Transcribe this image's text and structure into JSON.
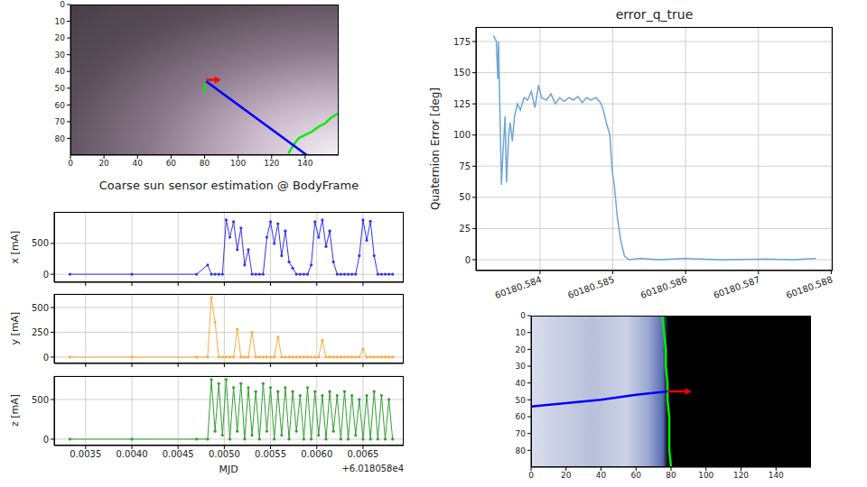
{
  "chart_data": [
    {
      "type": "image",
      "xlim": [
        0,
        160
      ],
      "ylim": [
        90,
        0
      ],
      "xticks": [
        0,
        20,
        40,
        60,
        80,
        100,
        120,
        140
      ],
      "yticks": [
        0,
        10,
        20,
        30,
        40,
        50,
        60,
        70,
        80
      ],
      "grid": false,
      "series": [
        {
          "color": "#00ee00",
          "x": [
            80,
            80,
            80
          ],
          "y": [
            47,
            50,
            52
          ]
        },
        {
          "color": "#00ee00",
          "x": [
            130,
            133,
            136,
            140,
            144,
            148,
            152,
            155,
            158,
            160
          ],
          "y": [
            89,
            84,
            80,
            78,
            76,
            73,
            71,
            68,
            66,
            65
          ]
        },
        {
          "color": "#0000ff",
          "x": [
            81,
            141
          ],
          "y": [
            46,
            90
          ]
        },
        {
          "color": "#ff0000",
          "marker": "arrow",
          "x": [
            81,
            86
          ],
          "y": [
            45,
            45
          ]
        }
      ]
    },
    {
      "type": "line",
      "title": "Coarse sun sensor estimation @ BodyFrame",
      "ylabel": "x [mA]",
      "color": "#3333ee",
      "marker": "circle",
      "grid": true,
      "tick_labels": "y",
      "xlim": [
        0.00316,
        0.00694
      ],
      "xticks": [
        0.0035,
        {
          "value": 0.004,
          "label": "0.0040"
        },
        0.0045,
        {
          "value": 0.005,
          "label": "0.0050"
        },
        0.0055,
        {
          "value": 0.006,
          "label": "0.0060"
        },
        0.0065
      ],
      "ylim": [
        -130,
        1010
      ],
      "yticks": [
        0,
        500
      ],
      "x": [
        0.00333,
        0.004,
        0.0047,
        0.00482,
        0.00486,
        0.0049,
        0.00494,
        0.00498,
        0.00502,
        0.00506,
        0.0051,
        0.00514,
        0.00518,
        0.00522,
        0.00526,
        0.0053,
        0.00534,
        0.00538,
        0.00542,
        0.00546,
        0.0055,
        0.00554,
        0.00558,
        0.00562,
        0.00566,
        0.0057,
        0.00574,
        0.00578,
        0.00582,
        0.00586,
        0.0059,
        0.00594,
        0.00598,
        0.00602,
        0.00606,
        0.0061,
        0.00614,
        0.00618,
        0.00622,
        0.00626,
        0.0063,
        0.00634,
        0.00638,
        0.00642,
        0.00646,
        0.0065,
        0.00654,
        0.00658,
        0.00662,
        0.00666,
        0.0067,
        0.00674,
        0.00678,
        0.00682
      ],
      "values": [
        0,
        0,
        0,
        150,
        0,
        0,
        0,
        0,
        880,
        600,
        850,
        400,
        750,
        150,
        400,
        0,
        0,
        0,
        0,
        600,
        850,
        500,
        820,
        300,
        700,
        200,
        100,
        0,
        0,
        0,
        0,
        150,
        850,
        600,
        880,
        450,
        700,
        200,
        0,
        0,
        0,
        0,
        0,
        0,
        300,
        880,
        550,
        860,
        300,
        0,
        0,
        0,
        0,
        0
      ]
    },
    {
      "type": "line",
      "ylabel": "y [mA]",
      "color": "#f5b041",
      "marker": "circle",
      "grid": true,
      "tick_labels": "y",
      "xlim": [
        0.00316,
        0.00694
      ],
      "xticks": [
        0.0035,
        {
          "value": 0.004,
          "label": "0.0040"
        },
        0.0045,
        {
          "value": 0.005,
          "label": "0.0050"
        },
        0.0055,
        {
          "value": 0.006,
          "label": "0.0060"
        },
        0.0065
      ],
      "ylim": [
        -64,
        636
      ],
      "yticks": [
        0,
        250,
        500
      ],
      "x": [
        0.00333,
        0.004,
        0.0047,
        0.00482,
        0.00486,
        0.0049,
        0.00494,
        0.00498,
        0.00502,
        0.00506,
        0.0051,
        0.00514,
        0.00518,
        0.00522,
        0.00526,
        0.0053,
        0.00534,
        0.00538,
        0.00542,
        0.00546,
        0.0055,
        0.00554,
        0.00558,
        0.00562,
        0.00566,
        0.0057,
        0.00574,
        0.00578,
        0.00582,
        0.00586,
        0.0059,
        0.00594,
        0.00598,
        0.00602,
        0.00606,
        0.0061,
        0.00614,
        0.00618,
        0.00622,
        0.00626,
        0.0063,
        0.00634,
        0.00638,
        0.00642,
        0.00646,
        0.0065,
        0.00654,
        0.00658,
        0.00662,
        0.00666,
        0.0067,
        0.00674,
        0.00678,
        0.00682
      ],
      "values": [
        0,
        0,
        0,
        0,
        600,
        350,
        0,
        0,
        0,
        0,
        0,
        280,
        0,
        0,
        0,
        250,
        0,
        0,
        0,
        0,
        0,
        0,
        200,
        0,
        0,
        0,
        0,
        0,
        0,
        0,
        0,
        0,
        0,
        0,
        170,
        0,
        0,
        0,
        0,
        0,
        0,
        0,
        0,
        0,
        0,
        80,
        0,
        0,
        0,
        0,
        0,
        0,
        0,
        0
      ]
    },
    {
      "type": "line",
      "ylabel": "z [mA]",
      "xlabel": "MJD",
      "x_offset_label": "+6.018058e4",
      "color": "#33a033",
      "marker": "circle",
      "grid": true,
      "xlim": [
        0.00316,
        0.00694
      ],
      "xticks": [
        0.0035,
        {
          "value": 0.004,
          "label": "0.0040"
        },
        0.0045,
        {
          "value": 0.005,
          "label": "0.0050"
        },
        0.0055,
        {
          "value": 0.006,
          "label": "0.0060"
        },
        0.0065
      ],
      "ylim": [
        -80,
        795
      ],
      "yticks": [
        0,
        500
      ],
      "x": [
        0.00333,
        0.004,
        0.0047,
        0.00482,
        0.00486,
        0.0049,
        0.00494,
        0.00498,
        0.00502,
        0.00506,
        0.0051,
        0.00514,
        0.00518,
        0.00522,
        0.00526,
        0.0053,
        0.00534,
        0.00538,
        0.00542,
        0.00546,
        0.0055,
        0.00554,
        0.00558,
        0.00562,
        0.00566,
        0.0057,
        0.00574,
        0.00578,
        0.00582,
        0.00586,
        0.0059,
        0.00594,
        0.00598,
        0.00602,
        0.00606,
        0.0061,
        0.00614,
        0.00618,
        0.00622,
        0.00626,
        0.0063,
        0.00634,
        0.00638,
        0.00642,
        0.00646,
        0.0065,
        0.00654,
        0.00658,
        0.00662,
        0.00666,
        0.0067,
        0.00674,
        0.00678,
        0.00682
      ],
      "values": [
        0,
        0,
        0,
        0,
        750,
        100,
        700,
        50,
        750,
        0,
        650,
        100,
        700,
        0,
        650,
        50,
        600,
        0,
        700,
        100,
        650,
        0,
        600,
        50,
        650,
        0,
        600,
        100,
        550,
        0,
        650,
        0,
        600,
        50,
        550,
        0,
        600,
        100,
        550,
        0,
        600,
        0,
        550,
        50,
        500,
        0,
        550,
        0,
        600,
        0,
        550,
        0,
        500,
        0
      ]
    },
    {
      "type": "line",
      "title": "error_q_true",
      "ylabel": "Quaternion Error [deg]",
      "color": "#6ea6d4",
      "grid": true,
      "xlim": [
        60180.58312,
        60180.58802
      ],
      "xticks": [
        60180.584,
        60180.585,
        60180.586,
        60180.587,
        60180.588
      ],
      "ylim": [
        -8.7,
        186.6
      ],
      "yticks": [
        0,
        25,
        50,
        75,
        100,
        125,
        150,
        175
      ],
      "x": [
        60180.58336,
        60180.5834,
        60180.58342,
        60180.58343,
        60180.58347,
        60180.58349,
        60180.58352,
        60180.58354,
        60180.58357,
        60180.58359,
        60180.58362,
        60180.58365,
        60180.58369,
        60180.58373,
        60180.58378,
        60180.58383,
        60180.58388,
        60180.58393,
        60180.58398,
        60180.58402,
        60180.58409,
        60180.58415,
        60180.58421,
        60180.58427,
        60180.58433,
        60180.5844,
        60180.58446,
        60180.58452,
        60180.58458,
        60180.58464,
        60180.5847,
        60180.58477,
        60180.58483,
        60180.58486,
        60180.58491,
        60180.58496,
        60180.58499,
        60180.58502,
        60180.58506,
        60180.58511,
        60180.58516,
        60180.58522,
        60180.58538,
        60180.58563,
        60180.586,
        60180.58649,
        60180.58711,
        60180.58748,
        60180.58779
      ],
      "values": [
        180,
        175,
        145,
        175,
        60,
        85,
        115,
        62,
        100,
        110,
        95,
        115,
        125,
        120,
        130,
        128,
        135,
        122,
        140,
        130,
        128,
        133,
        125,
        130,
        127,
        130,
        128,
        131,
        126,
        130,
        128,
        130,
        126,
        122,
        110,
        100,
        72,
        60,
        35,
        15,
        3,
        0,
        1,
        0,
        1,
        0,
        0.5,
        0,
        1
      ]
    },
    {
      "type": "image",
      "xlim": [
        0,
        160
      ],
      "ylim": [
        90,
        0
      ],
      "xticks": [
        0,
        20,
        40,
        60,
        80,
        100,
        120,
        140
      ],
      "yticks": [
        0,
        10,
        20,
        30,
        40,
        50,
        60,
        70,
        80
      ],
      "grid": false,
      "series": [
        {
          "color": "#00ee00",
          "x": [
            75,
            76,
            77,
            77,
            78,
            78,
            79,
            79,
            79,
            80
          ],
          "y": [
            0,
            10,
            20,
            30,
            40,
            50,
            60,
            70,
            80,
            90
          ]
        },
        {
          "color": "#0000ff",
          "x": [
            0,
            20,
            40,
            60,
            78
          ],
          "y": [
            54,
            52,
            50,
            47,
            45
          ]
        },
        {
          "color": "#ff0000",
          "marker": "arrow",
          "x": [
            78,
            88
          ],
          "y": [
            45,
            45
          ]
        }
      ]
    }
  ]
}
